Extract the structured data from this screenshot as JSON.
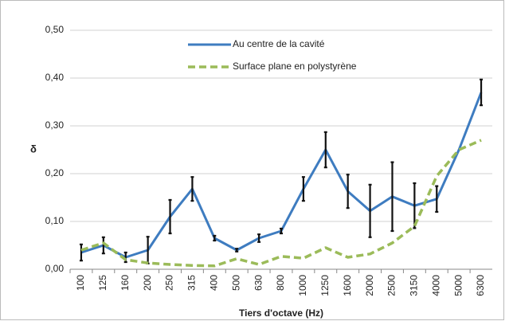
{
  "chart_data": {
    "type": "line",
    "xlabel": "Tiers d'octave (Hz)",
    "ylabel": "δ",
    "categories": [
      "100",
      "125",
      "160",
      "200",
      "250",
      "315",
      "400",
      "500",
      "630",
      "800",
      "1000",
      "1250",
      "1600",
      "2000",
      "2500",
      "3150",
      "4000",
      "5000",
      "6300"
    ],
    "series": [
      {
        "name": "Au centre de la cavité",
        "color": "#3e7cc0",
        "style": "solid",
        "values": [
          0.035,
          0.05,
          0.025,
          0.04,
          0.11,
          0.168,
          0.065,
          0.04,
          0.065,
          0.08,
          0.168,
          0.25,
          0.163,
          0.122,
          0.152,
          0.133,
          0.147,
          0.25,
          0.37
        ],
        "errors": [
          0.017,
          0.017,
          0.01,
          0.028,
          0.035,
          0.025,
          0.005,
          0.003,
          0.008,
          0.005,
          0.025,
          0.037,
          0.035,
          0.055,
          0.072,
          0.047,
          0.027,
          null,
          0.027
        ]
      },
      {
        "name": "Surface plane en polystyrène",
        "color": "#9bbb59",
        "style": "dashed",
        "values": [
          0.04,
          0.055,
          0.02,
          0.013,
          0.01,
          0.008,
          0.007,
          0.022,
          0.01,
          0.027,
          0.023,
          0.045,
          0.025,
          0.032,
          0.055,
          0.09,
          0.195,
          0.25,
          0.27
        ]
      }
    ],
    "ylim": [
      0,
      0.5
    ],
    "yticks": [
      {
        "value": 0,
        "label": "0,00"
      },
      {
        "value": 0.1,
        "label": "0,10"
      },
      {
        "value": 0.2,
        "label": "0,20"
      },
      {
        "value": 0.3,
        "label": "0,30"
      },
      {
        "value": 0.4,
        "label": "0,40"
      },
      {
        "value": 0.5,
        "label": "0,50"
      }
    ],
    "grid": true
  }
}
